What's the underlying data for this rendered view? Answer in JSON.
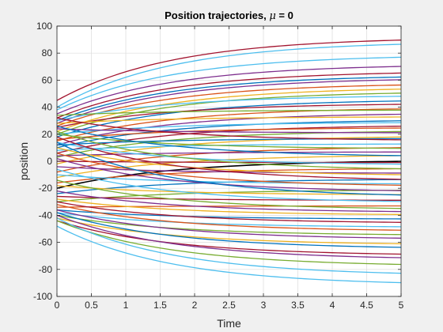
{
  "chart_data": {
    "type": "line",
    "title": "Position trajectories, ",
    "title_symbol": "μ",
    "title_suffix": " = 0",
    "xlabel": "Time",
    "ylabel": "position",
    "xlim": [
      0,
      5
    ],
    "ylim": [
      -100,
      100
    ],
    "xticks": [
      "0",
      "0.5",
      "1",
      "1.5",
      "2",
      "2.5",
      "3",
      "3.5",
      "4",
      "4.5",
      "5"
    ],
    "yticks": [
      "-100",
      "-80",
      "-60",
      "-40",
      "-20",
      "0",
      "20",
      "40",
      "60",
      "80",
      "100"
    ],
    "grid": true,
    "legend": "none",
    "series_note": "many trajectories x(t) = x_final + (x0 - x_final) * exp(-rate * t)",
    "palette": [
      "#0072bd",
      "#d95319",
      "#edb120",
      "#7e2f8e",
      "#77ac30",
      "#4dbeee",
      "#a2142f"
    ],
    "series": [
      {
        "x0": 45,
        "x_final": 92,
        "rate": 0.6,
        "color": "#a2142f"
      },
      {
        "x0": 40,
        "x_final": 89,
        "rate": 0.6,
        "color": "#4dbeee"
      },
      {
        "x0": 38,
        "x_final": 79,
        "rate": 0.6,
        "color": "#4dbeee"
      },
      {
        "x0": 35,
        "x_final": 72,
        "rate": 0.6,
        "color": "#7e2f8e"
      },
      {
        "x0": 32,
        "x_final": 67,
        "rate": 0.6,
        "color": "#a2142f"
      },
      {
        "x0": 30,
        "x_final": 64,
        "rate": 0.6,
        "color": "#0072bd"
      },
      {
        "x0": 28,
        "x_final": 62,
        "rate": 0.6,
        "color": "#7e2f8e"
      },
      {
        "x0": 26,
        "x_final": 58,
        "rate": 0.6,
        "color": "#d95319"
      },
      {
        "x0": 22,
        "x_final": 55,
        "rate": 0.6,
        "color": "#edb120"
      },
      {
        "x0": 20,
        "x_final": 52,
        "rate": 0.6,
        "color": "#77ac30"
      },
      {
        "x0": 30,
        "x_final": 49,
        "rate": 0.6,
        "color": "#4dbeee"
      },
      {
        "x0": 18,
        "x_final": 46,
        "rate": 0.6,
        "color": "#0072bd"
      },
      {
        "x0": 25,
        "x_final": 43,
        "rate": 0.6,
        "color": "#a2142f"
      },
      {
        "x0": 15,
        "x_final": 40,
        "rate": 0.6,
        "color": "#d95319"
      },
      {
        "x0": 34,
        "x_final": 38,
        "rate": 0.6,
        "color": "#77ac30"
      },
      {
        "x0": 12,
        "x_final": 36,
        "rate": 0.6,
        "color": "#7e2f8e"
      },
      {
        "x0": 28,
        "x_final": 33,
        "rate": 0.6,
        "color": "#edb120"
      },
      {
        "x0": 10,
        "x_final": 31,
        "rate": 0.6,
        "color": "#0072bd"
      },
      {
        "x0": 20,
        "x_final": 29,
        "rate": 0.6,
        "color": "#4dbeee"
      },
      {
        "x0": 6,
        "x_final": 27,
        "rate": 0.6,
        "color": "#a2142f"
      },
      {
        "x0": 16,
        "x_final": 25,
        "rate": 0.6,
        "color": "#d95319"
      },
      {
        "x0": 3,
        "x_final": 23,
        "rate": 0.6,
        "color": "#77ac30"
      },
      {
        "x0": 24,
        "x_final": 21,
        "rate": 0.6,
        "color": "#7e2f8e"
      },
      {
        "x0": -2,
        "x_final": 19,
        "rate": 0.6,
        "color": "#edb120"
      },
      {
        "x0": 12,
        "x_final": 17,
        "rate": 0.6,
        "color": "#0072bd"
      },
      {
        "x0": 32,
        "x_final": 15,
        "rate": 0.6,
        "color": "#a2142f"
      },
      {
        "x0": 8,
        "x_final": 13,
        "rate": 0.6,
        "color": "#4dbeee"
      },
      {
        "x0": -8,
        "x_final": 11,
        "rate": 0.6,
        "color": "#d95319"
      },
      {
        "x0": 20,
        "x_final": 9,
        "rate": 0.6,
        "color": "#77ac30"
      },
      {
        "x0": 4,
        "x_final": 7,
        "rate": 0.6,
        "color": "#7e2f8e"
      },
      {
        "x0": -12,
        "x_final": 5,
        "rate": 0.6,
        "color": "#edb120"
      },
      {
        "x0": 26,
        "x_final": 3,
        "rate": 0.6,
        "color": "#0072bd"
      },
      {
        "x0": -20,
        "x_final": 1,
        "rate": 0.6,
        "color": "#000000"
      },
      {
        "x0": 0,
        "x_final": -1,
        "rate": 0.6,
        "color": "#a2142f"
      },
      {
        "x0": 14,
        "x_final": -3,
        "rate": 0.6,
        "color": "#4dbeee"
      },
      {
        "x0": -16,
        "x_final": -5,
        "rate": 0.6,
        "color": "#d95319"
      },
      {
        "x0": 22,
        "x_final": -7,
        "rate": 0.6,
        "color": "#77ac30"
      },
      {
        "x0": -4,
        "x_final": -9,
        "rate": 0.6,
        "color": "#7e2f8e"
      },
      {
        "x0": 10,
        "x_final": -11,
        "rate": 0.6,
        "color": "#edb120"
      },
      {
        "x0": -24,
        "x_final": -13,
        "rate": 0.6,
        "color": "#0072bd"
      },
      {
        "x0": 18,
        "x_final": -15,
        "rate": 0.6,
        "color": "#a2142f"
      },
      {
        "x0": -10,
        "x_final": -17,
        "rate": 0.6,
        "color": "#4dbeee"
      },
      {
        "x0": 6,
        "x_final": -19,
        "rate": 0.6,
        "color": "#d95319"
      },
      {
        "x0": -30,
        "x_final": -21,
        "rate": 0.6,
        "color": "#77ac30"
      },
      {
        "x0": 2,
        "x_final": -23,
        "rate": 0.6,
        "color": "#7e2f8e"
      },
      {
        "x0": -18,
        "x_final": -25,
        "rate": 0.6,
        "color": "#edb120"
      },
      {
        "x0": 14,
        "x_final": -27,
        "rate": 0.6,
        "color": "#0072bd"
      },
      {
        "x0": -26,
        "x_final": -29,
        "rate": 0.6,
        "color": "#a2142f"
      },
      {
        "x0": -6,
        "x_final": -31,
        "rate": 0.6,
        "color": "#4dbeee"
      },
      {
        "x0": -34,
        "x_final": -33,
        "rate": 0.6,
        "color": "#d95319"
      },
      {
        "x0": -14,
        "x_final": -36,
        "rate": 0.6,
        "color": "#77ac30"
      },
      {
        "x0": -22,
        "x_final": -38,
        "rate": 0.6,
        "color": "#7e2f8e"
      },
      {
        "x0": -28,
        "x_final": -40,
        "rate": 0.6,
        "color": "#edb120"
      },
      {
        "x0": -36,
        "x_final": -43,
        "rate": 0.6,
        "color": "#0072bd"
      },
      {
        "x0": -30,
        "x_final": -46,
        "rate": 0.6,
        "color": "#a2142f"
      },
      {
        "x0": -38,
        "x_final": -49,
        "rate": 0.6,
        "color": "#4dbeee"
      },
      {
        "x0": -32,
        "x_final": -52,
        "rate": 0.6,
        "color": "#d95319"
      },
      {
        "x0": -40,
        "x_final": -55,
        "rate": 0.6,
        "color": "#77ac30"
      },
      {
        "x0": -36,
        "x_final": -58,
        "rate": 0.6,
        "color": "#7e2f8e"
      },
      {
        "x0": -42,
        "x_final": -62,
        "rate": 0.6,
        "color": "#edb120"
      },
      {
        "x0": -38,
        "x_final": -65,
        "rate": 0.6,
        "color": "#0072bd"
      },
      {
        "x0": -44,
        "x_final": -70,
        "rate": 0.6,
        "color": "#a2142f"
      },
      {
        "x0": -40,
        "x_final": -73,
        "rate": 0.6,
        "color": "#7e2f8e"
      },
      {
        "x0": -44,
        "x_final": -78,
        "rate": 0.6,
        "color": "#77ac30"
      },
      {
        "x0": -42,
        "x_final": -85,
        "rate": 0.6,
        "color": "#4dbeee"
      },
      {
        "x0": -48,
        "x_final": -92,
        "rate": 0.6,
        "color": "#4dbeee"
      }
    ]
  }
}
